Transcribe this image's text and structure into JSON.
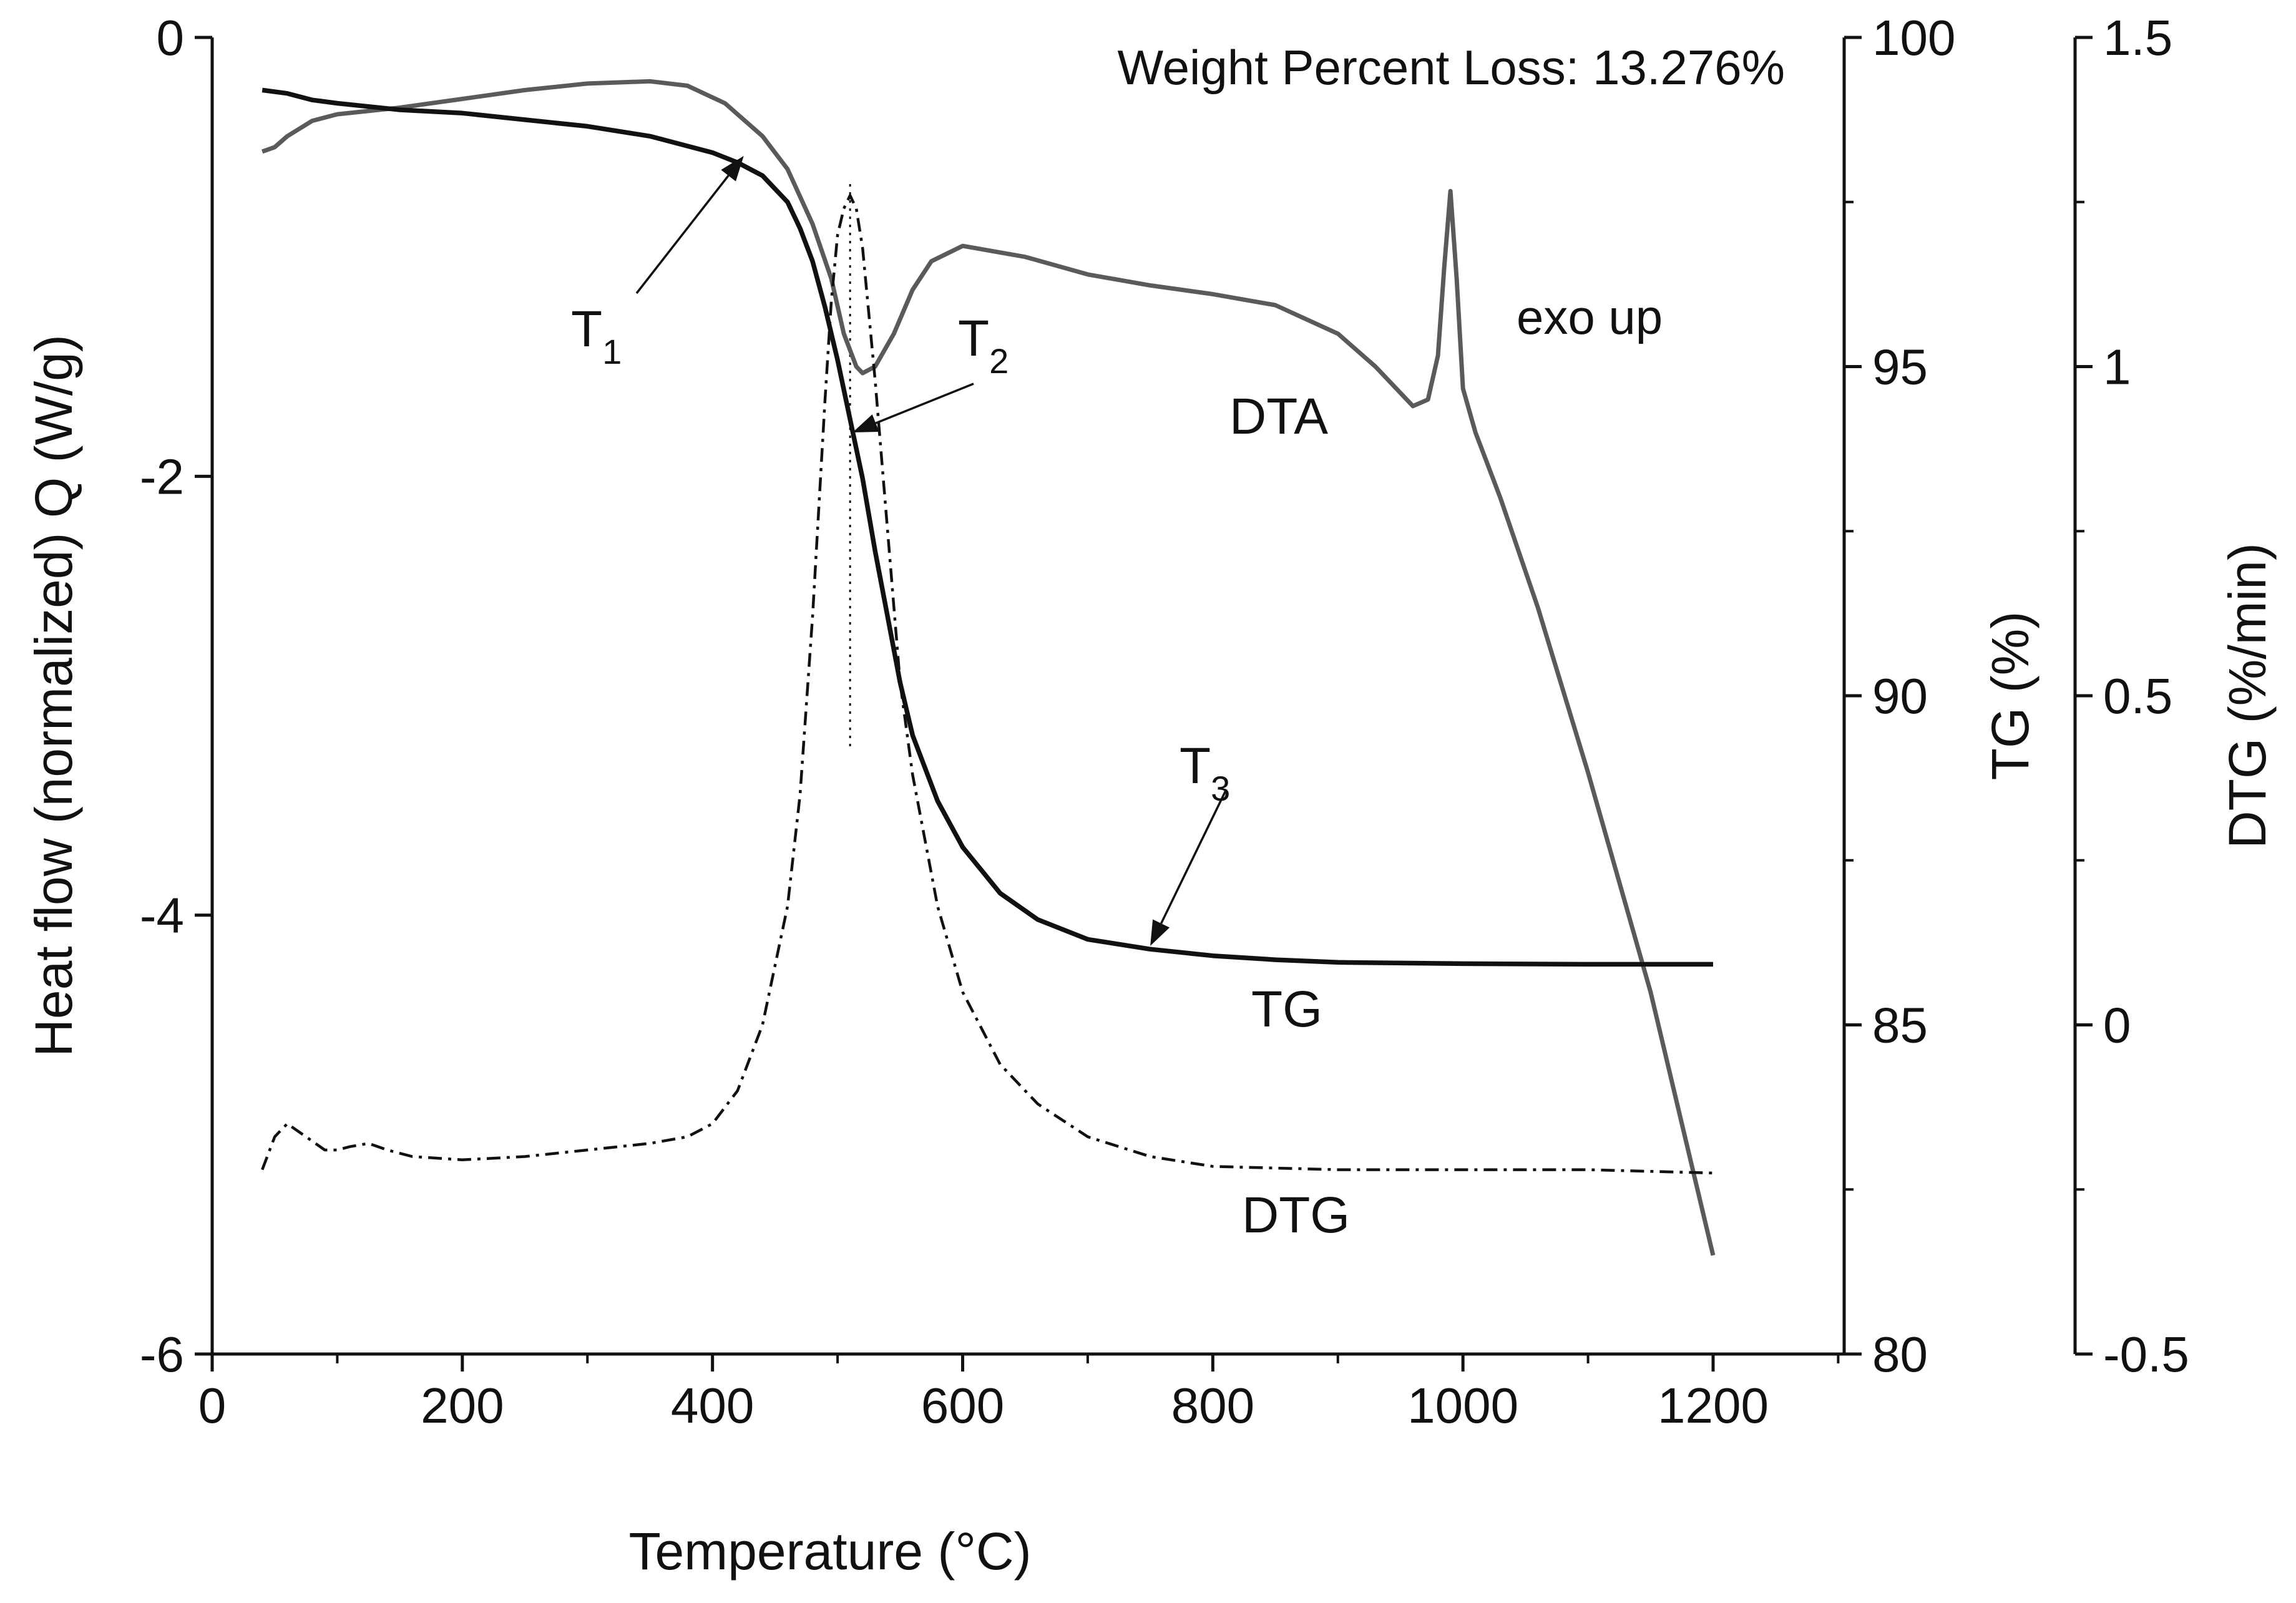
{
  "chart_data": {
    "type": "line",
    "annotation": "Weight Percent Loss: 13.276%",
    "note": "exo up",
    "xlabel": "Temperature (°C)",
    "xlim": [
      0,
      1300
    ],
    "xticks": [
      "0",
      "200",
      "400",
      "600",
      "800",
      "1000",
      "1200"
    ],
    "axes": [
      {
        "id": "heatflow",
        "label": "Heat flow (normalized) Q (W/g)",
        "range": [
          -6,
          0
        ],
        "ticks": [
          "0",
          "-2",
          "-4",
          "-6"
        ],
        "tick_values": [
          0,
          -2,
          -4,
          -6
        ]
      },
      {
        "id": "tg",
        "label": "TG (%)",
        "range": [
          80,
          100
        ],
        "ticks": [
          "100",
          "95",
          "90",
          "85",
          "80"
        ],
        "tick_values": [
          100,
          95,
          90,
          85,
          80
        ]
      },
      {
        "id": "dtg",
        "label": "DTG (%/min)",
        "range": [
          -0.5,
          1.5
        ],
        "ticks": [
          "1.5",
          "1",
          "0.5",
          "0",
          "-0.5"
        ],
        "tick_values": [
          1.5,
          1,
          0.5,
          0,
          -0.5
        ]
      }
    ],
    "series": [
      {
        "name": "DTA",
        "axis": "heatflow",
        "color": "#5a5a5a",
        "style": "solid",
        "x": [
          40,
          50,
          60,
          80,
          100,
          150,
          200,
          250,
          300,
          350,
          380,
          410,
          440,
          460,
          480,
          495,
          505,
          515,
          520,
          530,
          545,
          560,
          575,
          600,
          650,
          700,
          750,
          800,
          850,
          900,
          930,
          960,
          972,
          980,
          985,
          990,
          995,
          1000,
          1010,
          1030,
          1060,
          1100,
          1150,
          1200
        ],
        "y": [
          -0.52,
          -0.5,
          -0.45,
          -0.38,
          -0.35,
          -0.32,
          -0.28,
          -0.24,
          -0.21,
          -0.2,
          -0.22,
          -0.3,
          -0.45,
          -0.6,
          -0.85,
          -1.1,
          -1.35,
          -1.5,
          -1.53,
          -1.5,
          -1.35,
          -1.15,
          -1.02,
          -0.95,
          -1.0,
          -1.08,
          -1.13,
          -1.17,
          -1.22,
          -1.35,
          -1.5,
          -1.68,
          -1.65,
          -1.45,
          -1.05,
          -0.7,
          -1.1,
          -1.6,
          -1.8,
          -2.1,
          -2.6,
          -3.35,
          -4.35,
          -5.55
        ]
      },
      {
        "name": "TG",
        "axis": "tg",
        "color": "#111111",
        "style": "solid",
        "x": [
          40,
          60,
          80,
          100,
          150,
          200,
          250,
          300,
          350,
          400,
          420,
          440,
          460,
          470,
          480,
          490,
          500,
          510,
          520,
          530,
          540,
          550,
          560,
          580,
          600,
          630,
          660,
          700,
          750,
          800,
          850,
          900,
          1000,
          1100,
          1200
        ],
        "y": [
          99.2,
          99.15,
          99.05,
          99.0,
          98.9,
          98.85,
          98.75,
          98.65,
          98.5,
          98.25,
          98.1,
          97.9,
          97.5,
          97.1,
          96.6,
          95.9,
          95.1,
          94.2,
          93.3,
          92.2,
          91.2,
          90.2,
          89.4,
          88.4,
          87.7,
          87.0,
          86.6,
          86.3,
          86.15,
          86.05,
          85.99,
          85.95,
          85.93,
          85.92,
          85.92
        ]
      },
      {
        "name": "DTG",
        "axis": "dtg",
        "color": "#111111",
        "style": "dashdot",
        "x": [
          40,
          50,
          60,
          75,
          90,
          100,
          110,
          125,
          140,
          160,
          200,
          250,
          300,
          350,
          380,
          400,
          420,
          440,
          460,
          470,
          480,
          490,
          495,
          500,
          505,
          510,
          515,
          520,
          525,
          530,
          540,
          550,
          560,
          580,
          600,
          630,
          660,
          700,
          750,
          800,
          900,
          1000,
          1100,
          1200
        ],
        "y": [
          -0.22,
          -0.17,
          -0.15,
          -0.17,
          -0.19,
          -0.19,
          -0.185,
          -0.18,
          -0.19,
          -0.2,
          -0.205,
          -0.2,
          -0.19,
          -0.18,
          -0.17,
          -0.15,
          -0.1,
          0.0,
          0.18,
          0.35,
          0.62,
          0.95,
          1.1,
          1.2,
          1.24,
          1.26,
          1.24,
          1.18,
          1.08,
          0.98,
          0.75,
          0.52,
          0.38,
          0.18,
          0.05,
          -0.06,
          -0.12,
          -0.17,
          -0.2,
          -0.215,
          -0.22,
          -0.22,
          -0.22,
          -0.225
        ]
      }
    ],
    "markers": [
      {
        "name": "T1",
        "base": "T",
        "sub": "1",
        "x": 425,
        "y_tg": 98.2
      },
      {
        "name": "T2",
        "base": "T",
        "sub": "2",
        "x": 512,
        "y_tg": 94.0
      },
      {
        "name": "T3",
        "base": "T",
        "sub": "3",
        "x": 750,
        "y_tg": 86.2
      }
    ],
    "reference_line": {
      "x": 510,
      "style": "dotted"
    },
    "curve_labels": [
      "DTA",
      "TG",
      "DTG"
    ]
  }
}
